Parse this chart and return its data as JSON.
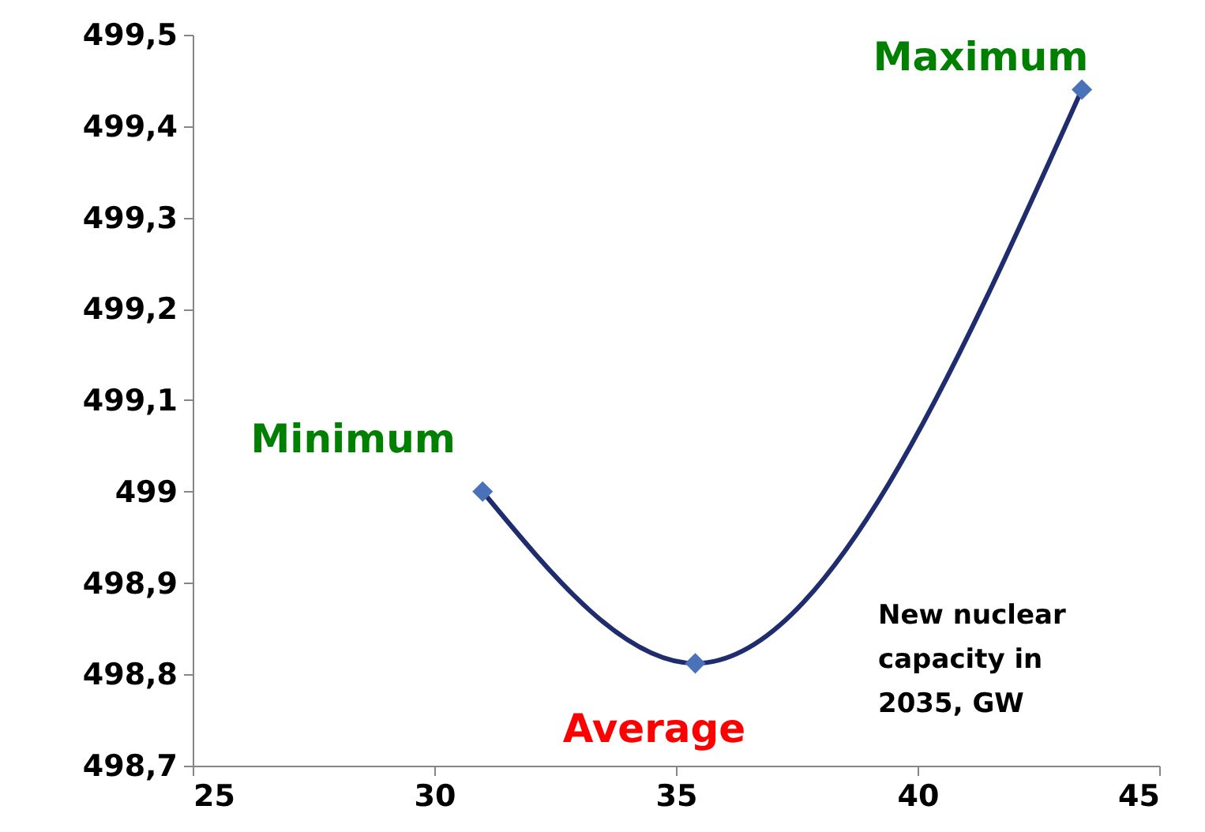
{
  "chart_data": {
    "type": "line",
    "xlabel": "New nuclear capacity in 2035, GW",
    "series": [
      {
        "type": "line",
        "color": "#1f2d6e",
        "x": [
          31.0,
          35.4,
          43.4
        ],
        "values": [
          499.0,
          498.812,
          499.44
        ],
        "marker": "none"
      },
      {
        "type": "scatter",
        "color": "#4a72b8",
        "x": [
          31.0,
          35.4,
          43.4
        ],
        "values": [
          499.0,
          498.812,
          499.44
        ],
        "marker": "diamond"
      }
    ],
    "xlim": [
      25,
      45
    ],
    "xticks": [
      25,
      30,
      35,
      40,
      45
    ],
    "ylim": [
      498.7,
      499.5
    ],
    "yticks": [
      {
        "value": 498.7,
        "label": "498,7"
      },
      {
        "value": 498.8,
        "label": "498,8"
      },
      {
        "value": 498.9,
        "label": "498,9"
      },
      {
        "value": 499,
        "label": "499"
      },
      {
        "value": 499.1,
        "label": "499,1"
      },
      {
        "value": 499.2,
        "label": "499,2"
      },
      {
        "value": 499.3,
        "label": "499,3"
      },
      {
        "value": 499.4,
        "label": "499,4"
      },
      {
        "value": 499.5,
        "label": "499,5"
      }
    ],
    "annotations": [
      {
        "text": "Minimum",
        "x": 31.0,
        "y": 499.0
      },
      {
        "text": "Average",
        "x": 35.4,
        "y": 498.812
      },
      {
        "text": "Maximum",
        "x": 43.4,
        "y": 499.44
      }
    ],
    "grid": false
  }
}
